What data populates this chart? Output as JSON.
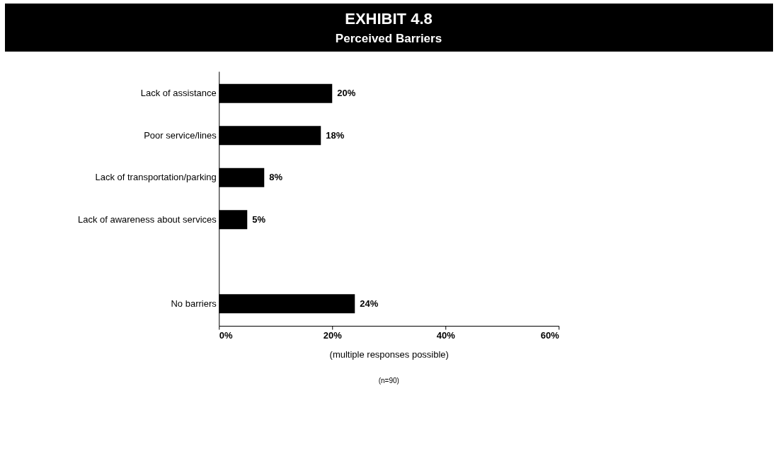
{
  "chart_data": {
    "type": "bar",
    "orientation": "horizontal",
    "title": "EXHIBIT 4.8",
    "subtitle": "Perceived Barriers",
    "categories": [
      "Lack of assistance",
      "Poor service/lines",
      "Lack of transportation/parking",
      "Lack of awareness about services",
      null,
      "No barriers"
    ],
    "values": [
      20,
      18,
      8,
      5,
      null,
      24
    ],
    "value_labels": [
      "20%",
      "18%",
      "8%",
      "5%",
      null,
      "24%"
    ],
    "color": "#000000",
    "xlim": [
      0,
      60
    ],
    "xticks": [
      {
        "value": 0,
        "label": "0%"
      },
      {
        "value": 20,
        "label": "20%"
      },
      {
        "value": 40,
        "label": "40%"
      },
      {
        "value": 60,
        "label": "60%"
      }
    ],
    "xlabel": "(multiple responses possible)",
    "annotations": [
      "(n=90)"
    ],
    "grid": false
  }
}
